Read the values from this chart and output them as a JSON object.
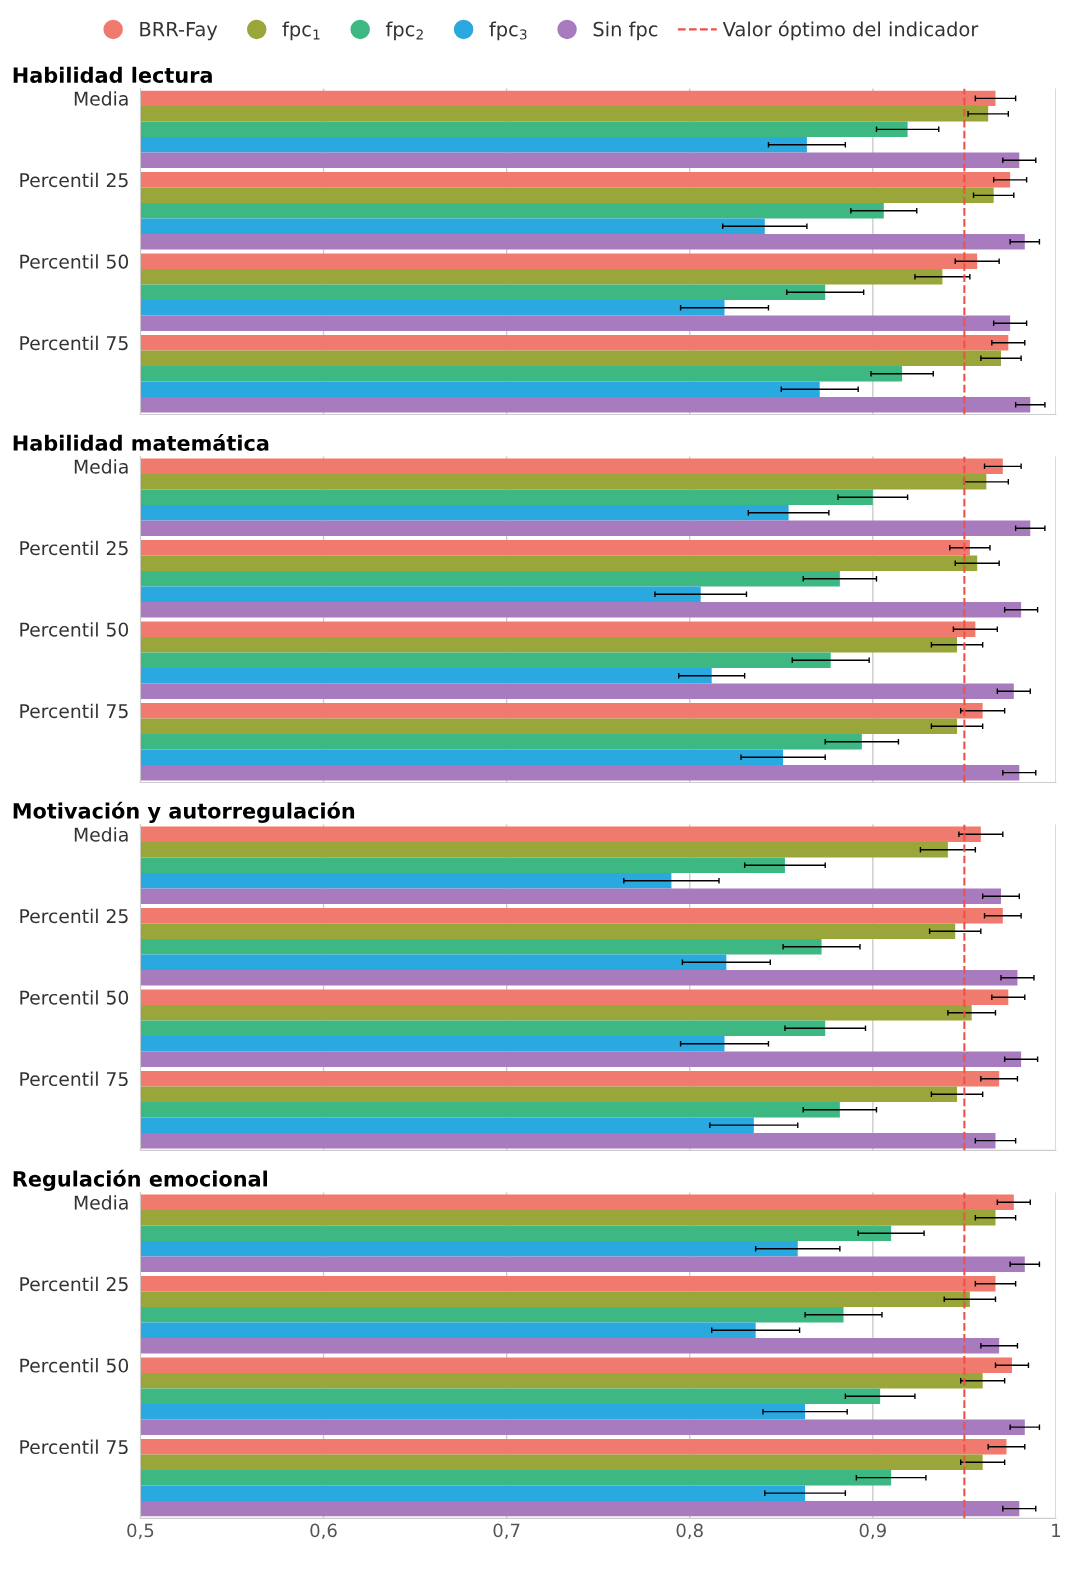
{
  "chart_data": [
    {
      "type": "bar",
      "orientation": "horizontal",
      "title": "Habilidad lectura",
      "categories": [
        "Media",
        "Percentil 25",
        "Percentil 50",
        "Percentil 75"
      ],
      "legend": "top",
      "grid": "x",
      "tick_labels": "y",
      "xlim": [
        0.5,
        1
      ],
      "xticks": [
        0.5,
        0.6,
        0.7,
        0.8,
        0.9,
        1
      ],
      "ref_lines": [
        {
          "axis": "x",
          "value": 0.95,
          "label": "Valor óptimo del indicador",
          "color": "#f0504a",
          "line_style": "dashed"
        }
      ],
      "series": [
        {
          "name": "BRR-Fay",
          "color": "#f07a6e",
          "values": [
            0.967,
            0.975,
            0.957,
            0.974
          ],
          "errors": [
            0.011,
            0.009,
            0.012,
            0.009
          ]
        },
        {
          "name": "fpc$_{1}$",
          "color": "#9aa53a",
          "values": [
            0.963,
            0.966,
            0.938,
            0.97
          ],
          "errors": [
            0.011,
            0.011,
            0.015,
            0.011
          ]
        },
        {
          "name": "fpc$_{2}$",
          "color": "#3db882",
          "values": [
            0.919,
            0.906,
            0.874,
            0.916
          ],
          "errors": [
            0.017,
            0.018,
            0.021,
            0.017
          ]
        },
        {
          "name": "fpc$_{3}$",
          "color": "#2aa8e0",
          "values": [
            0.864,
            0.841,
            0.819,
            0.871
          ],
          "errors": [
            0.021,
            0.023,
            0.024,
            0.021
          ]
        },
        {
          "name": "Sin fpc",
          "color": "#a77bbd",
          "values": [
            0.98,
            0.983,
            0.975,
            0.986
          ],
          "errors": [
            0.009,
            0.008,
            0.009,
            0.008
          ]
        }
      ]
    },
    {
      "type": "bar",
      "orientation": "horizontal",
      "title": "Habilidad matemática",
      "categories": [
        "Media",
        "Percentil 25",
        "Percentil 50",
        "Percentil 75"
      ],
      "grid": "x",
      "tick_labels": "y",
      "xlim": [
        0.5,
        1
      ],
      "xticks": [
        0.5,
        0.6,
        0.7,
        0.8,
        0.9,
        1
      ],
      "ref_lines": [
        {
          "axis": "x",
          "value": 0.95,
          "color": "#f0504a",
          "line_style": "dashed"
        }
      ],
      "series": [
        {
          "color": "#f07a6e",
          "values": [
            0.971,
            0.953,
            0.956,
            0.96
          ],
          "errors": [
            0.01,
            0.011,
            0.012,
            0.012
          ]
        },
        {
          "color": "#9aa53a",
          "values": [
            0.962,
            0.957,
            0.946,
            0.946
          ],
          "errors": [
            0.012,
            0.012,
            0.014,
            0.014
          ]
        },
        {
          "color": "#3db882",
          "values": [
            0.9,
            0.882,
            0.877,
            0.894
          ],
          "errors": [
            0.019,
            0.02,
            0.021,
            0.02
          ]
        },
        {
          "color": "#2aa8e0",
          "values": [
            0.854,
            0.806,
            0.812,
            0.851
          ],
          "errors": [
            0.022,
            0.025,
            0.018,
            0.023
          ]
        },
        {
          "color": "#a77bbd",
          "values": [
            0.986,
            0.981,
            0.977,
            0.98
          ],
          "errors": [
            0.008,
            0.009,
            0.009,
            0.009
          ]
        }
      ]
    },
    {
      "type": "bar",
      "orientation": "horizontal",
      "title": "Motivación y autorregulación",
      "categories": [
        "Media",
        "Percentil 25",
        "Percentil 50",
        "Percentil 75"
      ],
      "grid": "x",
      "tick_labels": "y",
      "xlim": [
        0.5,
        1
      ],
      "xticks": [
        0.5,
        0.6,
        0.7,
        0.8,
        0.9,
        1
      ],
      "ref_lines": [
        {
          "axis": "x",
          "value": 0.95,
          "color": "#f0504a",
          "line_style": "dashed"
        }
      ],
      "series": [
        {
          "color": "#f07a6e",
          "values": [
            0.959,
            0.971,
            0.974,
            0.969
          ],
          "errors": [
            0.012,
            0.01,
            0.009,
            0.01
          ]
        },
        {
          "color": "#9aa53a",
          "values": [
            0.941,
            0.945,
            0.954,
            0.946
          ],
          "errors": [
            0.015,
            0.014,
            0.013,
            0.014
          ]
        },
        {
          "color": "#3db882",
          "values": [
            0.852,
            0.872,
            0.874,
            0.882
          ],
          "errors": [
            0.022,
            0.021,
            0.022,
            0.02
          ]
        },
        {
          "color": "#2aa8e0",
          "values": [
            0.79,
            0.82,
            0.819,
            0.835
          ],
          "errors": [
            0.026,
            0.024,
            0.024,
            0.024
          ]
        },
        {
          "color": "#a77bbd",
          "values": [
            0.97,
            0.979,
            0.981,
            0.967
          ],
          "errors": [
            0.01,
            0.009,
            0.009,
            0.011
          ]
        }
      ]
    },
    {
      "type": "bar",
      "orientation": "horizontal",
      "title": "Regulación emocional",
      "categories": [
        "Media",
        "Percentil 25",
        "Percentil 50",
        "Percentil 75"
      ],
      "grid": "x",
      "xlim": [
        0.5,
        1
      ],
      "xticks": [
        {
          "value": 0.5,
          "label": "0,5"
        },
        {
          "value": 0.6,
          "label": "0,6"
        },
        {
          "value": 0.7,
          "label": "0,7"
        },
        {
          "value": 0.8,
          "label": "0,8"
        },
        {
          "value": 0.9,
          "label": "0,9"
        },
        {
          "value": 1,
          "label": "1"
        }
      ],
      "ref_lines": [
        {
          "axis": "x",
          "value": 0.95,
          "color": "#f0504a",
          "line_style": "dashed"
        }
      ],
      "series": [
        {
          "color": "#f07a6e",
          "values": [
            0.977,
            0.967,
            0.976,
            0.973
          ],
          "errors": [
            0.009,
            0.011,
            0.009,
            0.01
          ]
        },
        {
          "color": "#9aa53a",
          "values": [
            0.967,
            0.953,
            0.96,
            0.96
          ],
          "errors": [
            0.011,
            0.014,
            0.012,
            0.012
          ]
        },
        {
          "color": "#3db882",
          "values": [
            0.91,
            0.884,
            0.904,
            0.91
          ],
          "errors": [
            0.018,
            0.021,
            0.019,
            0.019
          ]
        },
        {
          "color": "#2aa8e0",
          "values": [
            0.859,
            0.836,
            0.863,
            0.863
          ],
          "errors": [
            0.023,
            0.024,
            0.023,
            0.022
          ]
        },
        {
          "color": "#a77bbd",
          "values": [
            0.983,
            0.969,
            0.983,
            0.98
          ],
          "errors": [
            0.008,
            0.01,
            0.008,
            0.009
          ]
        }
      ]
    }
  ]
}
